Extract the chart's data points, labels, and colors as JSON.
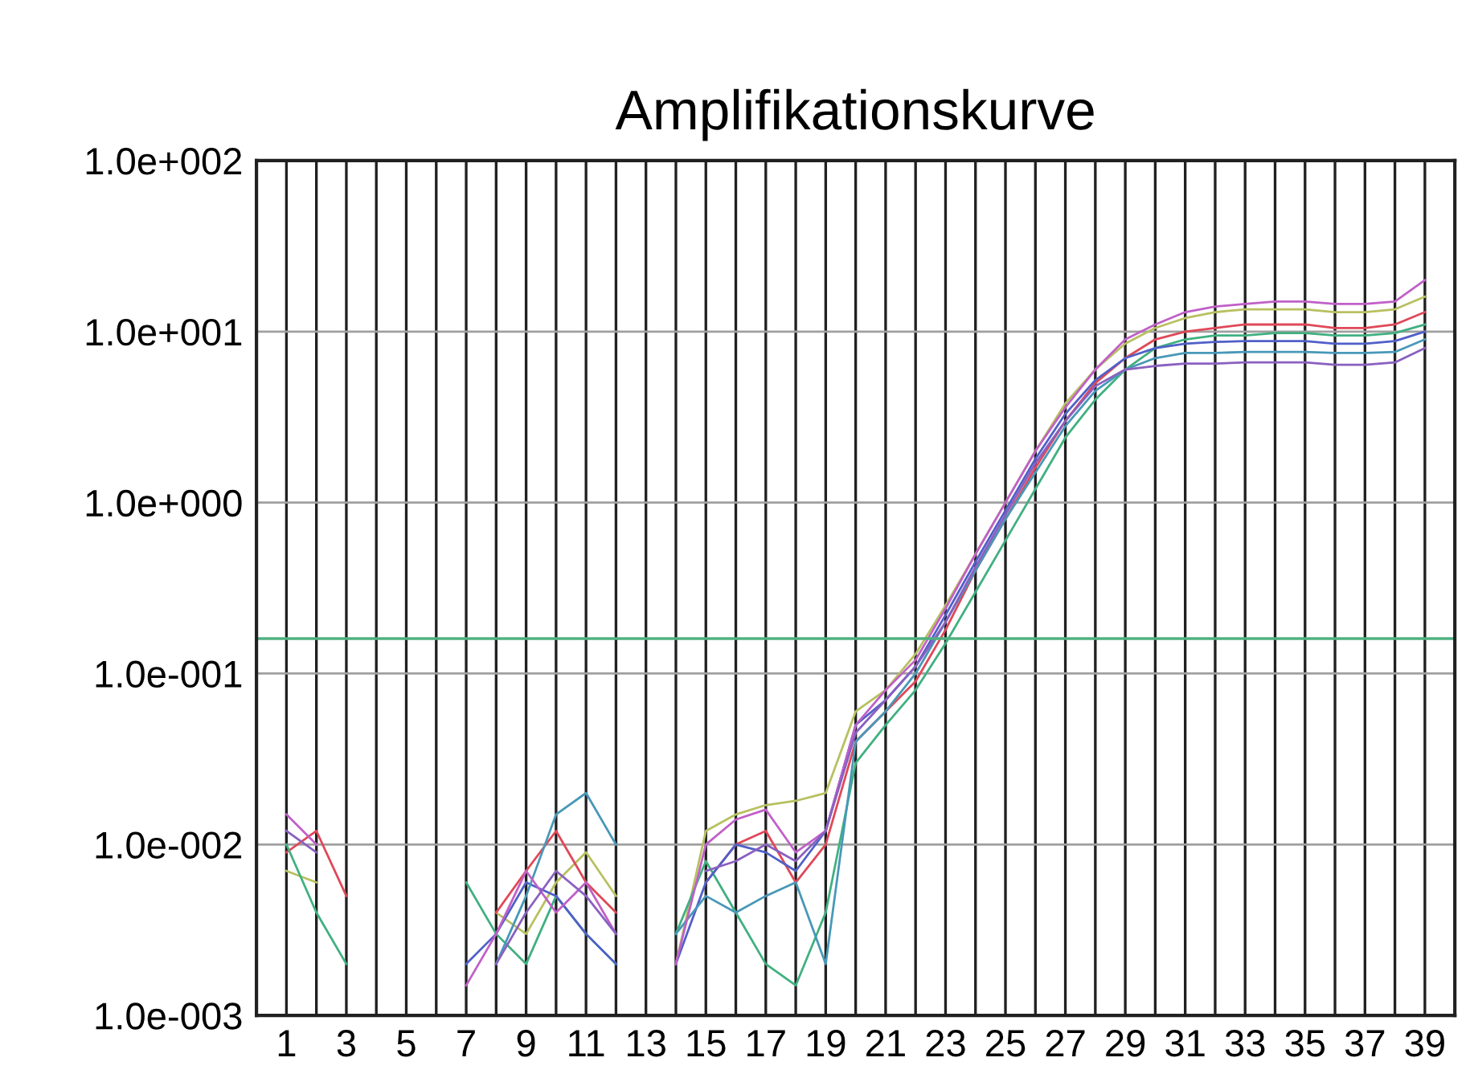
{
  "chart_data": {
    "type": "line",
    "title": "Amplifikationskurve",
    "x": [
      1,
      2,
      3,
      4,
      5,
      6,
      7,
      8,
      9,
      10,
      11,
      12,
      13,
      14,
      15,
      16,
      17,
      18,
      19,
      20,
      21,
      22,
      23,
      24,
      25,
      26,
      27,
      28,
      29,
      30,
      31,
      32,
      33,
      34,
      35,
      36,
      37,
      38,
      39
    ],
    "series": [
      {
        "color": "#b8c060",
        "values": [
          0.007,
          0.006,
          null,
          null,
          null,
          null,
          null,
          0.004,
          0.003,
          0.006,
          0.009,
          0.005,
          null,
          0.002,
          0.012,
          0.015,
          0.017,
          0.018,
          0.02,
          0.06,
          0.08,
          0.13,
          0.25,
          0.5,
          1.0,
          2.0,
          3.8,
          6,
          8.5,
          10.5,
          12,
          13,
          13.5,
          13.5,
          13.5,
          13,
          13,
          13.5,
          16
        ]
      },
      {
        "color": "#e04858",
        "values": [
          0.009,
          0.012,
          0.005,
          null,
          null,
          null,
          null,
          0.004,
          0.007,
          0.012,
          0.006,
          0.004,
          null,
          null,
          0.006,
          0.01,
          0.012,
          0.006,
          0.01,
          0.04,
          0.06,
          0.09,
          0.18,
          0.4,
          0.8,
          1.6,
          3,
          5,
          7,
          9,
          10,
          10.5,
          11,
          11,
          11,
          10.5,
          10.5,
          11,
          13
        ]
      },
      {
        "color": "#40b080",
        "values": [
          0.01,
          0.004,
          0.002,
          null,
          null,
          null,
          0.006,
          0.003,
          0.002,
          0.005,
          0.003,
          0.002,
          null,
          0.003,
          0.008,
          0.004,
          0.002,
          0.0015,
          0.004,
          0.03,
          0.05,
          0.08,
          0.15,
          0.3,
          0.6,
          1.2,
          2.4,
          4,
          6,
          8,
          9,
          9.5,
          9.5,
          9.8,
          9.8,
          9.5,
          9.5,
          9.8,
          11
        ]
      },
      {
        "color": "#5060c8",
        "values": [
          null,
          null,
          null,
          null,
          null,
          null,
          0.002,
          0.003,
          0.006,
          0.005,
          0.003,
          0.002,
          null,
          0.002,
          0.006,
          0.01,
          0.009,
          0.007,
          0.012,
          0.05,
          0.07,
          0.11,
          0.22,
          0.45,
          0.9,
          1.8,
          3.3,
          5.2,
          7,
          8,
          8.5,
          8.7,
          8.8,
          8.8,
          8.8,
          8.5,
          8.5,
          8.8,
          10
        ]
      },
      {
        "color": "#4898b8",
        "values": [
          null,
          null,
          null,
          null,
          null,
          null,
          null,
          0.002,
          0.005,
          0.015,
          0.02,
          0.01,
          null,
          0.003,
          0.005,
          0.004,
          0.005,
          0.006,
          0.002,
          0.04,
          0.06,
          0.1,
          0.2,
          0.4,
          0.8,
          1.5,
          2.8,
          4.5,
          6,
          7,
          7.5,
          7.5,
          7.6,
          7.6,
          7.6,
          7.5,
          7.5,
          7.6,
          9
        ]
      },
      {
        "color": "#c060c8",
        "values": [
          0.015,
          0.01,
          null,
          null,
          null,
          null,
          0.0015,
          0.003,
          0.007,
          0.004,
          0.006,
          0.003,
          null,
          0.002,
          0.01,
          0.014,
          0.016,
          0.009,
          0.012,
          0.05,
          0.08,
          0.12,
          0.24,
          0.5,
          1.0,
          2.0,
          3.6,
          6,
          9,
          11,
          13,
          14,
          14.5,
          15,
          15,
          14.5,
          14.5,
          15,
          20
        ]
      },
      {
        "color": "#8a60c0",
        "values": [
          0.012,
          0.009,
          null,
          null,
          null,
          null,
          null,
          0.002,
          0.004,
          0.007,
          0.005,
          0.003,
          null,
          null,
          0.007,
          0.008,
          0.01,
          0.008,
          0.012,
          0.045,
          0.07,
          0.11,
          0.2,
          0.42,
          0.85,
          1.7,
          3,
          4.8,
          6,
          6.3,
          6.5,
          6.5,
          6.6,
          6.6,
          6.6,
          6.4,
          6.4,
          6.6,
          8
        ]
      }
    ],
    "log": "y",
    "xlim": [
      0,
      40
    ],
    "ylim": [
      0.001,
      100
    ],
    "xticks": [
      1,
      {
        "value": 2,
        "label": null
      },
      3,
      {
        "value": 4,
        "label": null
      },
      5,
      {
        "value": 6,
        "label": null
      },
      7,
      {
        "value": 8,
        "label": null
      },
      9,
      {
        "value": 10,
        "label": null
      },
      11,
      {
        "value": 12,
        "label": null
      },
      13,
      {
        "value": 14,
        "label": null
      },
      15,
      {
        "value": 16,
        "label": null
      },
      17,
      {
        "value": 18,
        "label": null
      },
      19,
      {
        "value": 20,
        "label": null
      },
      21,
      {
        "value": 22,
        "label": null
      },
      23,
      {
        "value": 24,
        "label": null
      },
      25,
      {
        "value": 26,
        "label": null
      },
      27,
      {
        "value": 28,
        "label": null
      },
      29,
      {
        "value": 30,
        "label": null
      },
      31,
      {
        "value": 32,
        "label": null
      },
      33,
      {
        "value": 34,
        "label": null
      },
      35,
      {
        "value": 36,
        "label": null
      },
      37,
      {
        "value": 38,
        "label": null
      },
      39
    ],
    "yticks": [
      {
        "value": 0.001,
        "label": "1.0e-003"
      },
      {
        "value": 0.01,
        "label": "1.0e-002"
      },
      {
        "value": 0.1,
        "label": "1.0e-001"
      },
      {
        "value": 1,
        "label": "1.0e+000"
      },
      {
        "value": 10,
        "label": "1.0e+001"
      },
      {
        "value": 100,
        "label": "1.0e+002"
      }
    ],
    "ref_lines": [
      {
        "axis": "y",
        "value": 0.16,
        "color": "#50b080"
      }
    ],
    "grid": true,
    "marker": "none",
    "line_style": "solid",
    "legend": false
  }
}
